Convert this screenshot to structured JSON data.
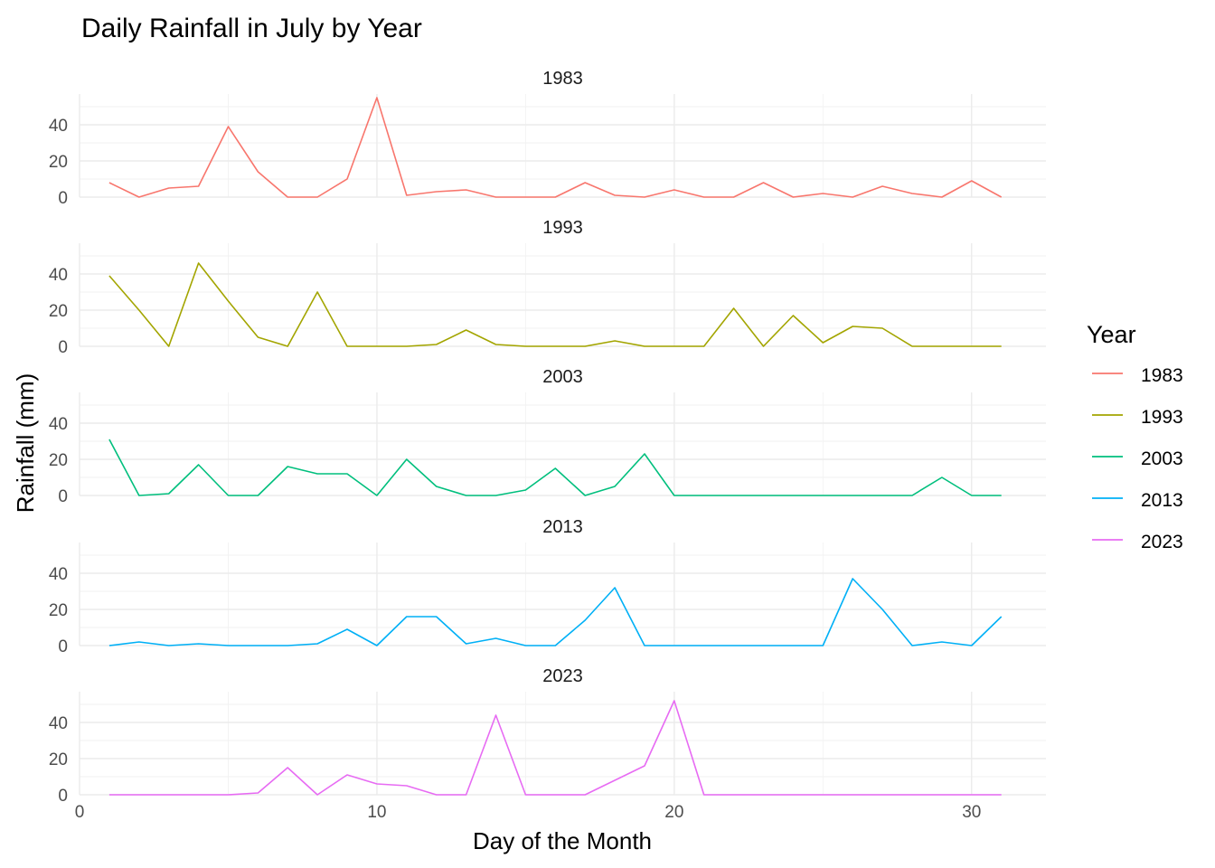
{
  "chart_data": {
    "type": "line",
    "title": "Daily Rainfall in July by Year",
    "xlabel": "Day of the Month",
    "ylabel": "Rainfall (mm)",
    "xlim": [
      0,
      32.5
    ],
    "ylim": [
      0,
      57
    ],
    "x_ticks": [
      0,
      10,
      20,
      30
    ],
    "y_ticks": [
      0,
      20,
      40
    ],
    "legend": {
      "title": "Year",
      "position": "right"
    },
    "x": [
      1,
      2,
      3,
      4,
      5,
      6,
      7,
      8,
      9,
      10,
      11,
      12,
      13,
      14,
      15,
      16,
      17,
      18,
      19,
      20,
      21,
      22,
      23,
      24,
      25,
      26,
      27,
      28,
      29,
      30,
      31
    ],
    "series": [
      {
        "name": "1983",
        "color": "#F8766D",
        "values": [
          8,
          0,
          5,
          6,
          39,
          14,
          0,
          0,
          10,
          55,
          1,
          3,
          4,
          0,
          0,
          0,
          8,
          1,
          0,
          4,
          0,
          0,
          8,
          0,
          2,
          0,
          6,
          2,
          0,
          9,
          0
        ]
      },
      {
        "name": "1993",
        "color": "#A3A500",
        "values": [
          39,
          20,
          0,
          46,
          25,
          5,
          0,
          30,
          0,
          0,
          0,
          1,
          9,
          1,
          0,
          0,
          0,
          3,
          0,
          0,
          0,
          21,
          0,
          17,
          2,
          11,
          10,
          0,
          0,
          0,
          0
        ]
      },
      {
        "name": "2003",
        "color": "#00BF7D",
        "values": [
          31,
          0,
          1,
          17,
          0,
          0,
          16,
          12,
          12,
          0,
          20,
          5,
          0,
          0,
          3,
          15,
          0,
          5,
          23,
          0,
          0,
          0,
          0,
          0,
          0,
          0,
          0,
          0,
          10,
          0,
          0
        ]
      },
      {
        "name": "2013",
        "color": "#00B0F6",
        "values": [
          0,
          2,
          0,
          1,
          0,
          0,
          0,
          1,
          9,
          0,
          16,
          16,
          1,
          4,
          0,
          0,
          14,
          32,
          0,
          0,
          0,
          0,
          0,
          0,
          0,
          37,
          20,
          0,
          2,
          0,
          16
        ]
      },
      {
        "name": "2023",
        "color": "#E76BF3",
        "values": [
          0,
          0,
          0,
          0,
          0,
          1,
          15,
          0,
          11,
          6,
          5,
          0,
          0,
          44,
          0,
          0,
          0,
          8,
          16,
          52,
          0,
          0,
          0,
          0,
          0,
          0,
          0,
          0,
          0,
          0,
          0
        ]
      }
    ]
  }
}
